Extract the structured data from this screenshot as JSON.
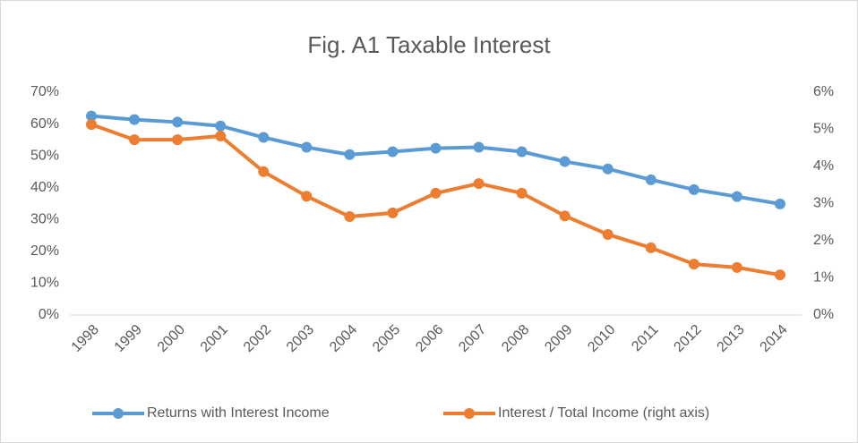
{
  "chart_data": {
    "type": "line",
    "title": "Fig. A1 Taxable Interest",
    "categories": [
      "1998",
      "1999",
      "2000",
      "2001",
      "2002",
      "2003",
      "2004",
      "2005",
      "2006",
      "2007",
      "2008",
      "2009",
      "2010",
      "2011",
      "2012",
      "2013",
      "2014"
    ],
    "series": [
      {
        "name": "Returns with Interest Income",
        "color": "#5b9bd5",
        "axis": "y",
        "values": [
          62.5,
          61.4,
          60.6,
          59.4,
          55.8,
          52.7,
          50.4,
          51.3,
          52.4,
          52.7,
          51.3,
          48.2,
          45.9,
          42.5,
          39.4,
          37.2,
          34.9
        ]
      },
      {
        "name": "Interest / Total Income (right axis)",
        "color": "#ed7d31",
        "axis": "y2",
        "values": [
          5.13,
          4.72,
          4.72,
          4.82,
          3.86,
          3.2,
          2.65,
          2.75,
          3.28,
          3.54,
          3.28,
          2.67,
          2.17,
          1.81,
          1.37,
          1.28,
          1.08
        ]
      }
    ],
    "ylim": [
      0,
      70
    ],
    "yticks": [
      {
        "value": 0,
        "label": "0%"
      },
      {
        "value": 10,
        "label": "10%"
      },
      {
        "value": 20,
        "label": "20%"
      },
      {
        "value": 30,
        "label": "30%"
      },
      {
        "value": 40,
        "label": "40%"
      },
      {
        "value": 50,
        "label": "50%"
      },
      {
        "value": 60,
        "label": "60%"
      },
      {
        "value": 70,
        "label": "70%"
      }
    ],
    "y2lim": [
      0,
      6
    ],
    "y2ticks": [
      {
        "value": 0,
        "label": "0%"
      },
      {
        "value": 1,
        "label": "1%"
      },
      {
        "value": 2,
        "label": "2%"
      },
      {
        "value": 3,
        "label": "3%"
      },
      {
        "value": 4,
        "label": "4%"
      },
      {
        "value": 5,
        "label": "5%"
      },
      {
        "value": 6,
        "label": "6%"
      }
    ],
    "legend": "bottom"
  }
}
